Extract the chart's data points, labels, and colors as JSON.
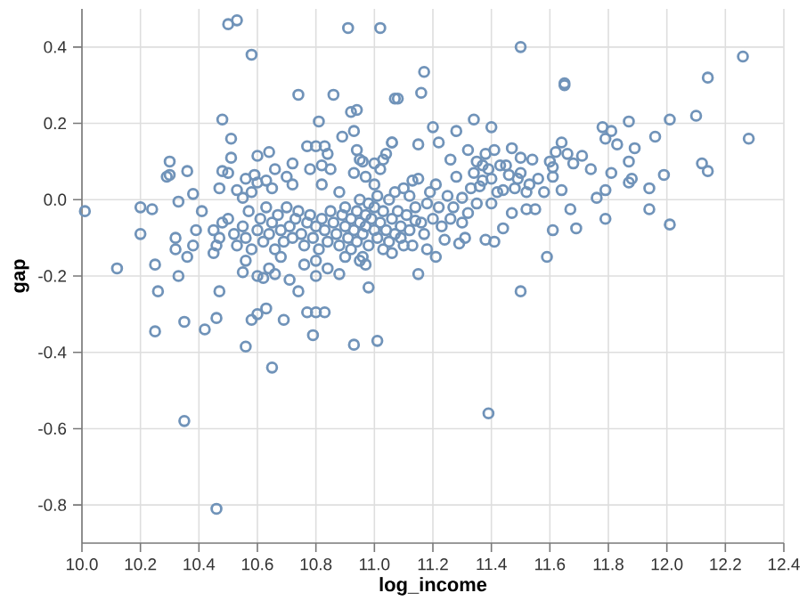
{
  "chart_data": {
    "type": "scatter",
    "xlabel": "log_income",
    "ylabel": "gap",
    "color": "#7093b9",
    "marker": "circle",
    "grid": true,
    "xlim": [
      10.0,
      12.4
    ],
    "ylim": [
      -0.9,
      0.5
    ],
    "xticks": [
      {
        "value": 10.0,
        "label": "10.0"
      },
      10.2,
      10.4,
      10.6,
      10.8,
      {
        "value": 11.0,
        "label": "11.0"
      },
      11.2,
      11.4,
      11.6,
      11.8,
      {
        "value": 12.0,
        "label": "12.0"
      },
      12.2,
      12.4
    ],
    "yticks": [
      -0.8,
      -0.6,
      -0.4,
      -0.2,
      {
        "value": 0.0,
        "label": "0.0"
      },
      0.2,
      0.4
    ],
    "x": [
      10.01,
      10.12,
      10.2,
      10.2,
      10.24,
      10.25,
      10.26,
      10.25,
      10.3,
      10.29,
      10.3,
      10.36,
      10.33,
      10.32,
      10.32,
      10.38,
      10.33,
      10.36,
      10.35,
      10.35,
      10.42,
      10.38,
      10.39,
      10.41,
      10.46,
      10.46,
      10.47,
      10.45,
      10.47,
      10.48,
      10.48,
      10.5,
      10.53,
      10.58,
      10.51,
      10.51,
      10.5,
      10.56,
      10.58,
      10.6,
      10.65,
      10.63,
      10.69,
      10.55,
      10.6,
      10.62,
      10.64,
      10.66,
      10.71,
      10.74,
      10.77,
      10.8,
      10.83,
      10.79,
      10.8,
      10.88,
      10.93,
      11.01,
      10.98,
      10.74,
      10.86,
      10.81,
      10.91,
      11.02,
      11.07,
      11.06,
      10.89,
      10.92,
      10.94,
      10.93,
      10.94,
      10.95,
      11.0,
      11.03,
      10.77,
      10.8,
      10.83,
      10.84,
      10.85,
      10.82,
      10.72,
      10.66,
      10.64,
      10.6,
      10.59,
      10.63,
      10.56,
      10.53,
      10.55,
      11.5,
      11.65,
      11.65,
      11.17,
      11.16,
      11.08,
      12.26,
      12.14,
      12.28,
      12.1,
      12.01,
      11.96,
      11.87,
      11.78,
      11.81,
      11.79,
      11.83,
      11.89,
      11.87,
      11.81,
      11.88,
      11.87,
      11.99,
      11.94,
      11.94,
      12.01,
      12.12,
      12.14,
      11.79,
      11.76,
      11.79,
      11.74,
      11.71,
      11.69,
      11.61,
      11.59,
      11.5,
      11.39,
      11.15,
      11.34,
      11.4,
      11.2,
      11.28,
      11.64,
      11.62,
      11.66,
      11.68,
      11.61,
      11.61,
      11.64,
      11.67,
      11.55,
      11.52,
      11.52,
      11.56,
      11.54,
      11.47,
      11.5,
      11.41,
      11.43,
      11.32,
      11.26,
      11.36,
      11.37,
      11.3,
      11.4,
      11.46,
      11.49,
      11.44,
      11.4,
      11.47,
      11.44,
      11.41,
      11.38,
      11.31,
      11.29,
      11.24,
      11.21,
      11.18,
      11.13,
      11.09,
      11.14,
      11.18,
      11.22,
      11.26,
      11.32,
      11.35,
      11.12,
      11.15,
      11.15,
      11.22,
      11.06,
      10.45,
      10.47,
      10.5,
      10.52,
      10.53,
      10.55,
      10.56,
      10.57,
      10.58,
      10.6,
      10.61,
      10.62,
      10.63,
      10.64,
      10.65,
      10.66,
      10.67,
      10.68,
      10.69,
      10.7,
      10.71,
      10.72,
      10.73,
      10.74,
      10.75,
      10.76,
      10.77,
      10.78,
      10.79,
      10.8,
      10.81,
      10.82,
      10.83,
      10.84,
      10.85,
      10.86,
      10.87,
      10.88,
      10.89,
      10.9,
      10.9,
      10.91,
      10.92,
      10.92,
      10.93,
      10.94,
      10.94,
      10.95,
      10.95,
      10.96,
      10.96,
      10.97,
      10.97,
      10.98,
      10.98,
      10.99,
      11.0,
      11.0,
      11.01,
      11.01,
      11.02,
      11.03,
      11.03,
      11.04,
      11.05,
      11.05,
      11.06,
      11.07,
      11.07,
      11.08,
      11.09,
      11.1,
      11.1,
      11.11,
      11.12,
      11.13,
      11.14,
      11.16,
      11.17,
      11.19,
      11.2,
      11.21,
      11.23,
      11.25,
      11.27,
      11.28,
      11.3,
      11.33,
      11.34,
      11.35,
      11.37,
      11.38,
      11.39,
      11.42,
      11.45,
      11.48,
      11.5,
      11.53,
      11.58,
      11.6,
      10.58,
      10.6,
      10.65,
      10.7,
      10.72,
      10.78,
      10.82,
      10.88,
      10.93,
      10.96,
      10.97,
      11.0,
      11.02,
      11.04,
      10.8,
      10.76,
      10.84,
      10.9,
      10.95,
      10.97,
      11.06,
      10.68,
      10.56,
      10.46,
      10.48
    ],
    "values": [
      -0.03,
      -0.18,
      -0.02,
      -0.09,
      -0.025,
      -0.17,
      -0.24,
      -0.345,
      0.1,
      0.06,
      0.065,
      0.075,
      -0.005,
      -0.1,
      -0.13,
      -0.12,
      -0.2,
      -0.15,
      -0.32,
      -0.58,
      -0.34,
      0.015,
      -0.08,
      -0.03,
      -0.81,
      -0.31,
      -0.24,
      -0.14,
      0.03,
      0.075,
      0.21,
      0.46,
      0.47,
      0.38,
      0.16,
      0.11,
      0.07,
      -0.385,
      -0.315,
      -0.3,
      -0.44,
      -0.285,
      -0.315,
      -0.19,
      -0.2,
      -0.205,
      -0.18,
      -0.195,
      -0.21,
      -0.24,
      -0.295,
      -0.295,
      -0.295,
      -0.355,
      -0.2,
      -0.195,
      -0.38,
      -0.37,
      -0.23,
      0.275,
      0.275,
      0.205,
      0.45,
      0.45,
      0.265,
      0.15,
      0.165,
      0.23,
      0.235,
      0.18,
      0.13,
      0.105,
      0.095,
      0.105,
      0.14,
      0.14,
      0.14,
      0.12,
      0.08,
      0.09,
      0.095,
      0.08,
      0.125,
      0.115,
      0.065,
      0.05,
      0.055,
      0.025,
      0.005,
      0.4,
      0.305,
      0.3,
      0.335,
      0.28,
      0.265,
      0.375,
      0.32,
      0.16,
      0.22,
      0.21,
      0.165,
      0.205,
      0.19,
      0.18,
      0.16,
      0.145,
      0.135,
      0.1,
      0.07,
      0.055,
      0.045,
      0.065,
      0.03,
      -0.025,
      -0.065,
      0.095,
      0.075,
      -0.05,
      0.005,
      0.025,
      0.08,
      0.115,
      -0.075,
      -0.08,
      -0.15,
      -0.24,
      -0.56,
      -0.195,
      0.21,
      0.19,
      0.19,
      0.18,
      0.15,
      0.125,
      0.12,
      0.095,
      0.085,
      0.06,
      0.025,
      -0.025,
      -0.025,
      -0.025,
      0.02,
      0.055,
      0.105,
      0.135,
      0.11,
      0.13,
      0.09,
      0.13,
      0.105,
      0.035,
      0.05,
      0.005,
      0.055,
      0.065,
      0.055,
      0.025,
      -0.01,
      -0.035,
      -0.075,
      -0.11,
      -0.105,
      -0.1,
      -0.115,
      -0.105,
      -0.15,
      -0.13,
      -0.12,
      -0.1,
      -0.055,
      -0.01,
      -0.02,
      -0.05,
      -0.035,
      -0.01,
      0.01,
      0.055,
      0.145,
      0.15,
      0.15,
      -0.08,
      -0.1,
      -0.05,
      -0.09,
      -0.12,
      -0.07,
      -0.1,
      -0.03,
      -0.13,
      -0.08,
      -0.05,
      -0.11,
      -0.02,
      -0.09,
      -0.06,
      -0.13,
      -0.04,
      -0.08,
      -0.11,
      -0.02,
      -0.07,
      -0.1,
      -0.05,
      -0.03,
      -0.09,
      -0.12,
      -0.06,
      -0.04,
      -0.1,
      -0.07,
      -0.13,
      -0.05,
      -0.08,
      -0.11,
      -0.03,
      -0.06,
      -0.09,
      -0.12,
      -0.04,
      -0.07,
      -0.02,
      -0.1,
      -0.05,
      -0.13,
      -0.08,
      -0.03,
      -0.11,
      -0.06,
      0.0,
      -0.09,
      -0.15,
      -0.04,
      -0.07,
      -0.01,
      -0.12,
      -0.05,
      -0.08,
      -0.02,
      -0.1,
      0.01,
      -0.06,
      -0.13,
      -0.03,
      -0.08,
      0.0,
      -0.11,
      -0.05,
      -0.09,
      0.02,
      -0.03,
      -0.07,
      -0.12,
      0.03,
      -0.04,
      -0.08,
      0.05,
      -0.02,
      -0.06,
      -0.09,
      0.02,
      -0.05,
      0.04,
      -0.07,
      0.01,
      -0.02,
      0.06,
      -0.06,
      0.03,
      0.07,
      0.1,
      0.09,
      0.12,
      0.08,
      0.02,
      0.09,
      0.03,
      0.07,
      0.04,
      0.02,
      0.1,
      0.02,
      0.045,
      0.03,
      0.06,
      0.04,
      0.08,
      0.04,
      0.02,
      0.07,
      0.1,
      0.06,
      0.04,
      0.08,
      0.12,
      -0.16,
      -0.17,
      -0.18,
      -0.15,
      -0.16,
      -0.17,
      -0.14,
      -0.15,
      -0.16,
      -0.12,
      -0.06
    ]
  }
}
